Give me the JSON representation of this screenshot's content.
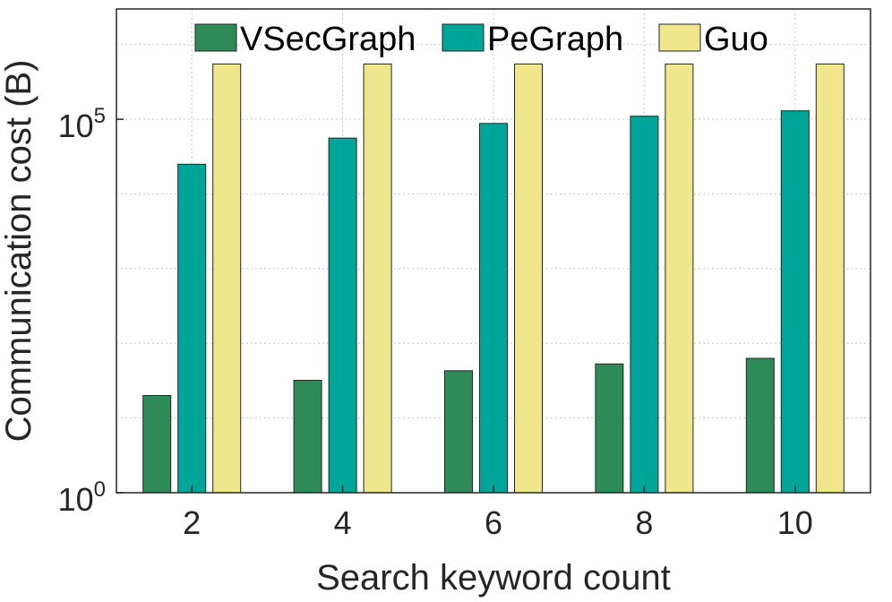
{
  "chart_data": {
    "type": "bar",
    "categories": [
      "2",
      "4",
      "6",
      "8",
      "10"
    ],
    "series": [
      {
        "name": "VSecGraph",
        "color": "#2e8b57",
        "values": [
          20,
          32,
          43,
          53,
          63
        ]
      },
      {
        "name": "PeGraph",
        "color": "#00a59a",
        "values": [
          25000,
          56000,
          88000,
          110000,
          130000
        ]
      },
      {
        "name": "Guo",
        "color": "#f0e68c",
        "values": [
          550000,
          550000,
          550000,
          550000,
          550000
        ]
      }
    ],
    "xlabel": "Search keyword count",
    "ylabel": "Communication cost (B)",
    "y_scale": "log",
    "ylim": [
      1,
      3000000
    ],
    "yticks": [
      {
        "value": 1,
        "base": "10",
        "exp": "0"
      },
      {
        "value": 100000,
        "base": "10",
        "exp": "5"
      }
    ],
    "grid": true,
    "legend_position": "top"
  }
}
